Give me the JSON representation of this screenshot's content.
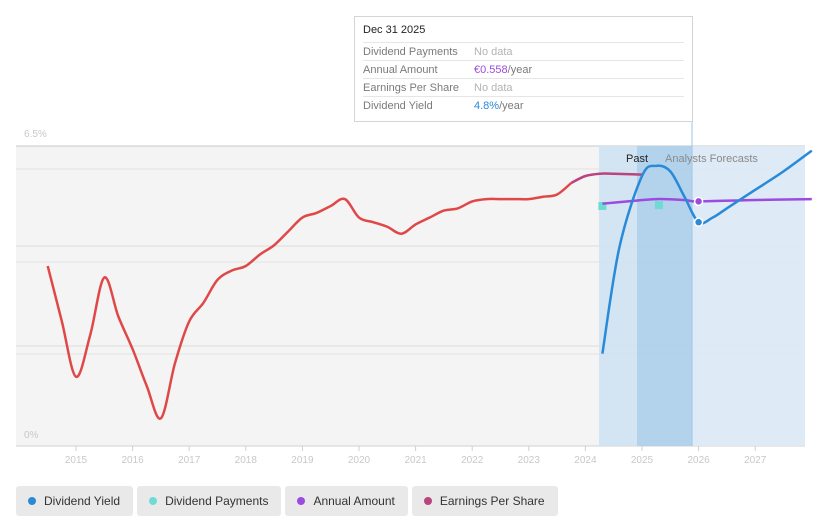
{
  "tooltip": {
    "date": "Dec 31 2025",
    "rows": [
      {
        "label": "Dividend Payments",
        "value": "No data",
        "unit": ""
      },
      {
        "label": "Annual Amount",
        "value": "€0.558",
        "unit": "/year",
        "color": "#9b4be0"
      },
      {
        "label": "Earnings Per Share",
        "value": "No data",
        "unit": ""
      },
      {
        "label": "Dividend Yield",
        "value": "4.8%",
        "unit": "/year",
        "color": "#2a8ad8"
      }
    ]
  },
  "labels": {
    "past": "Past",
    "forecast": "Analysts Forecasts"
  },
  "legend": [
    {
      "label": "Dividend Yield",
      "color": "#2a8ad8"
    },
    {
      "label": "Dividend Payments",
      "color": "#6fdcd4"
    },
    {
      "label": "Annual Amount",
      "color": "#9b4be0"
    },
    {
      "label": "Earnings Per Share",
      "color": "#b9447e"
    }
  ],
  "chart_data": {
    "type": "line",
    "y_axis": {
      "ticks": [
        "6.5%",
        "0%"
      ],
      "min": 0,
      "max": 6.5
    },
    "x_axis": {
      "ticks": [
        "2015",
        "2016",
        "2017",
        "2018",
        "2019",
        "2020",
        "2021",
        "2022",
        "2023",
        "2024",
        "2025",
        "2026",
        "2027"
      ],
      "min": 2014.0,
      "max": 2028.0
    },
    "grid": true,
    "colors": {
      "earnings": "#e04848",
      "earnings_recent": "#b9447e",
      "yield": "#2a8ad8",
      "annual": "#9b4be0",
      "payments": "#6fdcd4"
    },
    "series": [
      {
        "name": "Earnings Per Share",
        "key": "eps",
        "points": [
          [
            2014.5,
            3.9
          ],
          [
            2014.75,
            2.7
          ],
          [
            2015.0,
            1.5
          ],
          [
            2015.25,
            2.4
          ],
          [
            2015.5,
            3.65
          ],
          [
            2015.75,
            2.8
          ],
          [
            2016.0,
            2.1
          ],
          [
            2016.25,
            1.3
          ],
          [
            2016.5,
            0.6
          ],
          [
            2016.75,
            1.8
          ],
          [
            2017.0,
            2.7
          ],
          [
            2017.25,
            3.1
          ],
          [
            2017.5,
            3.6
          ],
          [
            2017.75,
            3.8
          ],
          [
            2018.0,
            3.9
          ],
          [
            2018.25,
            4.15
          ],
          [
            2018.5,
            4.35
          ],
          [
            2018.75,
            4.65
          ],
          [
            2019.0,
            4.95
          ],
          [
            2019.25,
            5.05
          ],
          [
            2019.5,
            5.2
          ],
          [
            2019.75,
            5.35
          ],
          [
            2020.0,
            4.95
          ],
          [
            2020.25,
            4.85
          ],
          [
            2020.5,
            4.75
          ],
          [
            2020.75,
            4.6
          ],
          [
            2021.0,
            4.8
          ],
          [
            2021.25,
            4.95
          ],
          [
            2021.5,
            5.1
          ],
          [
            2021.75,
            5.15
          ],
          [
            2022.0,
            5.3
          ],
          [
            2022.25,
            5.35
          ],
          [
            2022.5,
            5.35
          ],
          [
            2022.75,
            5.35
          ],
          [
            2023.0,
            5.35
          ],
          [
            2023.25,
            5.4
          ],
          [
            2023.5,
            5.45
          ],
          [
            2023.75,
            5.7
          ],
          [
            2024.0,
            5.85
          ],
          [
            2024.25,
            5.9
          ],
          [
            2024.5,
            5.9
          ],
          [
            2025.0,
            5.88
          ]
        ]
      },
      {
        "name": "Dividend Yield",
        "key": "yield",
        "points": [
          [
            2024.3,
            2.0
          ],
          [
            2024.6,
            4.3
          ],
          [
            2025.0,
            5.85
          ],
          [
            2025.25,
            6.07
          ],
          [
            2025.5,
            5.95
          ],
          [
            2025.75,
            5.4
          ],
          [
            2026.0,
            4.85
          ],
          [
            2026.25,
            4.95
          ],
          [
            2026.5,
            5.15
          ],
          [
            2026.75,
            5.35
          ],
          [
            2027.0,
            5.55
          ],
          [
            2027.5,
            5.95
          ],
          [
            2028.0,
            6.4
          ]
        ]
      },
      {
        "name": "Annual Amount",
        "key": "annual",
        "points": [
          [
            2024.3,
            5.25
          ],
          [
            2024.75,
            5.3
          ],
          [
            2025.25,
            5.35
          ],
          [
            2025.75,
            5.33
          ],
          [
            2026.0,
            5.3
          ],
          [
            2027.0,
            5.33
          ],
          [
            2028.0,
            5.35
          ]
        ]
      },
      {
        "name": "Dividend Payments",
        "key": "payments",
        "points": [
          [
            2024.3,
            5.2
          ],
          [
            2025.3,
            5.22
          ]
        ]
      }
    ],
    "markers": [
      {
        "series": "yield",
        "x": 2026.0,
        "y": 4.85
      },
      {
        "series": "annual",
        "x": 2026.0,
        "y": 5.3
      }
    ]
  }
}
